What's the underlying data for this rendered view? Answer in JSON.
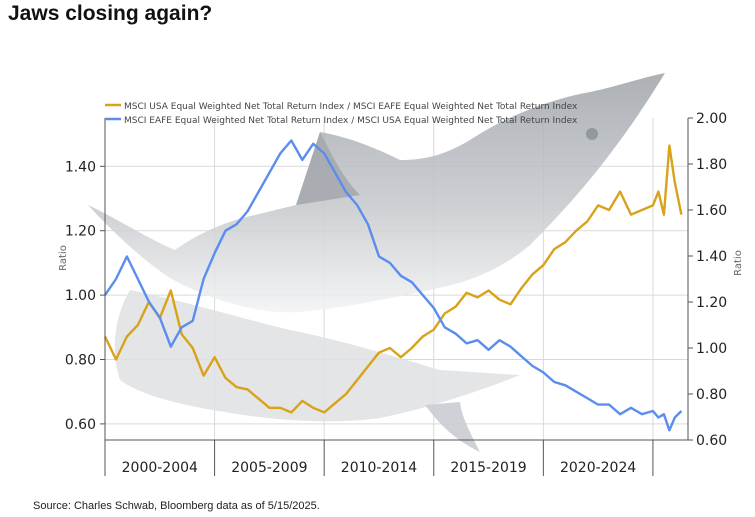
{
  "page": {
    "title": "Jaws closing again?",
    "source": "Source: Charles Schwab, Bloomberg data as of 5/15/2025."
  },
  "colors": {
    "orange_series": "#d9a21b",
    "blue_series": "#5b8def",
    "axis": "#555555",
    "grid": "#d9d9d9",
    "shark": "#b9bdc2"
  },
  "illustration": {
    "name": "shark-illustration"
  },
  "chart_data": {
    "type": "line",
    "legend_position": "top",
    "grid": true,
    "ylabel_left": "Ratio",
    "ylabel_right": "Ratio",
    "ylim_left": [
      0.55,
      1.55
    ],
    "ylim_right": [
      0.6,
      2.0
    ],
    "xlim": [
      1999.0,
      2025.6
    ],
    "left_ticks": [
      "0.60",
      "0.80",
      "1.00",
      "1.20",
      "1.40"
    ],
    "left_tick_values": [
      0.6,
      0.8,
      1.0,
      1.2,
      1.4
    ],
    "right_ticks": [
      "0.60",
      "0.80",
      "1.00",
      "1.20",
      "1.40",
      "1.60",
      "1.80",
      "2.00"
    ],
    "right_tick_values": [
      0.6,
      0.8,
      1.0,
      1.2,
      1.4,
      1.6,
      1.8,
      2.0
    ],
    "x_categories": [
      "2000-2004",
      "2005-2009",
      "2010-2014",
      "2015-2019",
      "2020-2024"
    ],
    "x_category_ranges": [
      [
        1999.0,
        2004.0
      ],
      [
        2004.0,
        2009.0
      ],
      [
        2009.0,
        2014.0
      ],
      [
        2014.0,
        2019.0
      ],
      [
        2019.0,
        2024.0
      ]
    ],
    "series": [
      {
        "name": "MSCI USA Equal Weighted Net Total Return Index / MSCI EAFE Equal Weighted Net Total Return Index",
        "axis": "right",
        "color": "#d9a21b",
        "x": [
          1999.0,
          1999.5,
          2000.0,
          2000.5,
          2001.0,
          2001.5,
          2002.0,
          2002.5,
          2003.0,
          2003.5,
          2004.0,
          2004.5,
          2005.0,
          2005.5,
          2006.0,
          2006.5,
          2007.0,
          2007.5,
          2008.0,
          2008.5,
          2009.0,
          2009.5,
          2010.0,
          2010.5,
          2011.0,
          2011.5,
          2012.0,
          2012.5,
          2013.0,
          2013.5,
          2014.0,
          2014.5,
          2015.0,
          2015.5,
          2016.0,
          2016.5,
          2017.0,
          2017.5,
          2018.0,
          2018.5,
          2019.0,
          2019.5,
          2020.0,
          2020.5,
          2021.0,
          2021.5,
          2022.0,
          2022.5,
          2023.0,
          2023.5,
          2024.0,
          2024.25,
          2024.5,
          2024.75,
          2025.0,
          2025.3
        ],
        "values": [
          1.05,
          0.95,
          1.05,
          1.1,
          1.2,
          1.13,
          1.25,
          1.06,
          1.0,
          0.88,
          0.96,
          0.87,
          0.83,
          0.82,
          0.78,
          0.74,
          0.74,
          0.72,
          0.77,
          0.74,
          0.72,
          0.76,
          0.8,
          0.86,
          0.92,
          0.98,
          1.0,
          0.96,
          1.0,
          1.05,
          1.08,
          1.15,
          1.18,
          1.24,
          1.22,
          1.25,
          1.21,
          1.19,
          1.26,
          1.32,
          1.36,
          1.43,
          1.46,
          1.51,
          1.55,
          1.62,
          1.6,
          1.68,
          1.58,
          1.6,
          1.62,
          1.68,
          1.58,
          1.88,
          1.72,
          1.58
        ]
      },
      {
        "name": "MSCI EAFE Equal Weighted Net Total Return Index / MSCI USA Equal Weighted Net Total Return Index",
        "axis": "left",
        "color": "#5b8def",
        "x": [
          1999.0,
          1999.5,
          2000.0,
          2000.5,
          2001.0,
          2001.5,
          2002.0,
          2002.5,
          2003.0,
          2003.5,
          2004.0,
          2004.5,
          2005.0,
          2005.5,
          2006.0,
          2006.5,
          2007.0,
          2007.5,
          2008.0,
          2008.5,
          2009.0,
          2009.5,
          2010.0,
          2010.5,
          2011.0,
          2011.5,
          2012.0,
          2012.5,
          2013.0,
          2013.5,
          2014.0,
          2014.5,
          2015.0,
          2015.5,
          2016.0,
          2016.5,
          2017.0,
          2017.5,
          2018.0,
          2018.5,
          2019.0,
          2019.5,
          2020.0,
          2020.5,
          2021.0,
          2021.5,
          2022.0,
          2022.5,
          2023.0,
          2023.5,
          2024.0,
          2024.25,
          2024.5,
          2024.75,
          2025.0,
          2025.3
        ],
        "values": [
          1.0,
          1.05,
          1.12,
          1.05,
          0.98,
          0.93,
          0.84,
          0.9,
          0.92,
          1.05,
          1.13,
          1.2,
          1.22,
          1.26,
          1.32,
          1.38,
          1.44,
          1.48,
          1.42,
          1.47,
          1.44,
          1.38,
          1.32,
          1.28,
          1.22,
          1.12,
          1.1,
          1.06,
          1.04,
          1.0,
          0.96,
          0.9,
          0.88,
          0.85,
          0.86,
          0.83,
          0.86,
          0.84,
          0.81,
          0.78,
          0.76,
          0.73,
          0.72,
          0.7,
          0.68,
          0.66,
          0.66,
          0.63,
          0.65,
          0.63,
          0.64,
          0.62,
          0.63,
          0.58,
          0.62,
          0.64
        ]
      }
    ]
  }
}
